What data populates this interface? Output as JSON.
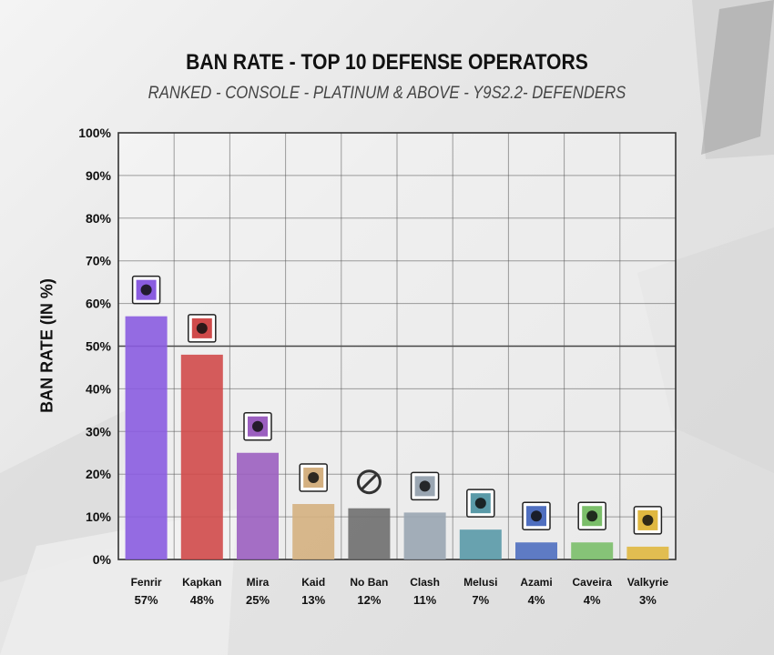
{
  "chart_data": {
    "type": "bar",
    "title": "BAN RATE - TOP 10 DEFENSE OPERATORS",
    "subtitle": "RANKED - CONSOLE - PLATINUM & ABOVE - Y9S2.2- DEFENDERS",
    "ylabel": "BAN RATE (IN %)",
    "xlabel": "",
    "ylim": [
      0,
      100
    ],
    "yticks": [
      "0%",
      "10%",
      "20%",
      "30%",
      "40%",
      "50%",
      "60%",
      "70%",
      "80%",
      "90%",
      "100%"
    ],
    "grid": true,
    "categories": [
      "Fenrir",
      "Kapkan",
      "Mira",
      "Kaid",
      "No Ban",
      "Clash",
      "Melusi",
      "Azami",
      "Caveira",
      "Valkyrie"
    ],
    "values": [
      57,
      48,
      25,
      13,
      12,
      11,
      7,
      4,
      4,
      3
    ],
    "value_labels": [
      "57%",
      "48%",
      "25%",
      "13%",
      "12%",
      "11%",
      "7%",
      "4%",
      "4%",
      "3%"
    ],
    "colors": [
      "#8a5ce0",
      "#d04a4a",
      "#9b5fc0",
      "#d4b080",
      "#6f6f6f",
      "#9aa6b2",
      "#5a9aa8",
      "#4f6fc0",
      "#7bbf6a",
      "#e0b840"
    ],
    "icons": [
      "fenrir-operator-icon",
      "kapkan-operator-icon",
      "mira-operator-icon",
      "kaid-operator-icon",
      "no-ban-icon",
      "clash-operator-icon",
      "melusi-operator-icon",
      "azami-operator-icon",
      "caveira-operator-icon",
      "valkyrie-operator-icon"
    ]
  }
}
